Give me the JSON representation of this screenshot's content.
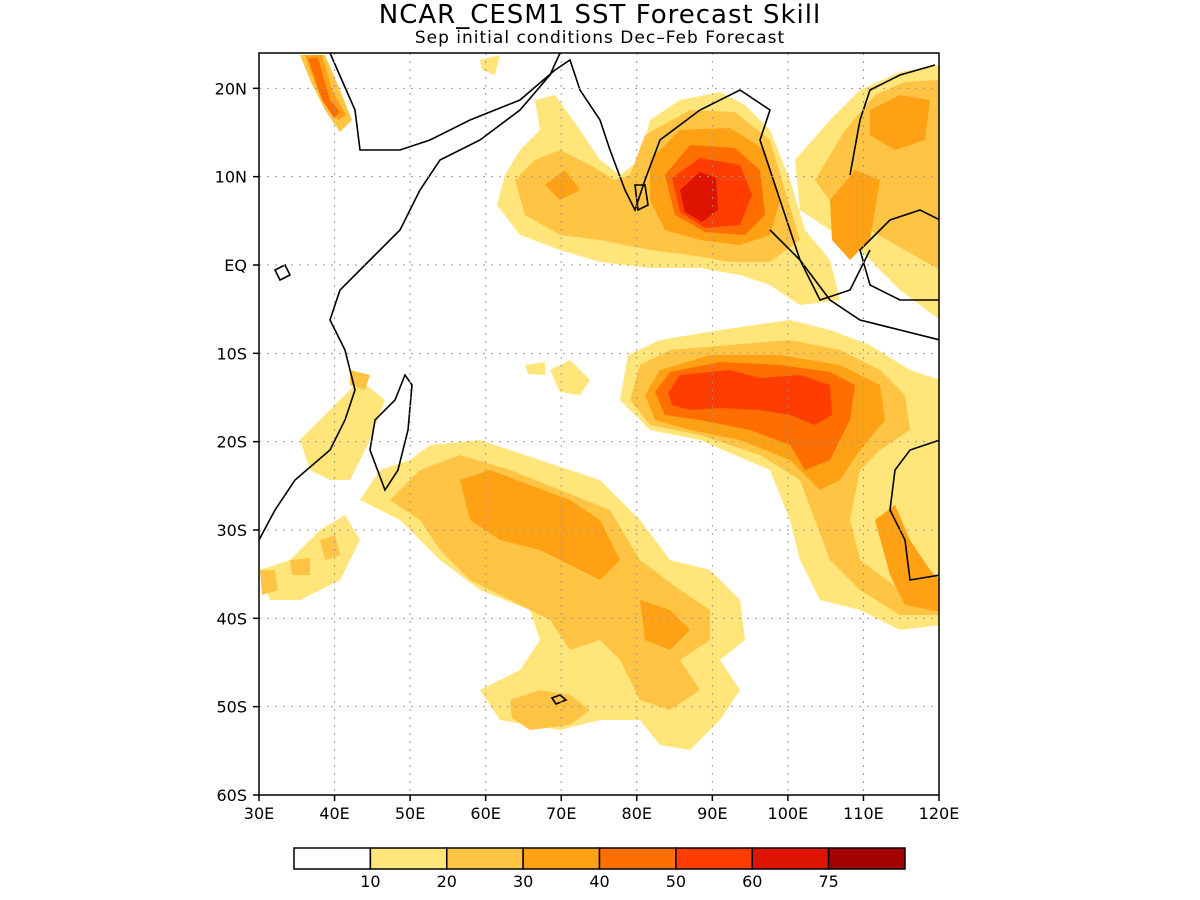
{
  "title": "NCAR_CESM1 SST Forecast Skill",
  "subtitle": "Sep initial conditions  Dec–Feb Forecast",
  "map": {
    "lon_range": [
      30,
      120
    ],
    "lat_range": [
      -60,
      24
    ],
    "x_ticks": [
      "30E",
      "40E",
      "50E",
      "60E",
      "70E",
      "80E",
      "90E",
      "100E",
      "110E",
      "120E"
    ],
    "y_ticks": [
      "20N",
      "10N",
      "EQ",
      "10S",
      "20S",
      "30S",
      "40S",
      "50S",
      "60S"
    ],
    "grid": "dotted"
  },
  "colorbar": {
    "labels": [
      "10",
      "20",
      "30",
      "40",
      "50",
      "60",
      "75"
    ],
    "colors": [
      "#ffffff",
      "#ffe57a",
      "#ffc443",
      "#ffa114",
      "#ff6f00",
      "#ff3d00",
      "#de1300",
      "#a50000"
    ]
  },
  "colors": {
    "c1": "#ffe57a",
    "c2": "#ffc443",
    "c3": "#ffa114",
    "c4": "#ff6f00",
    "c5": "#ff3d00",
    "c6": "#de1300"
  }
}
